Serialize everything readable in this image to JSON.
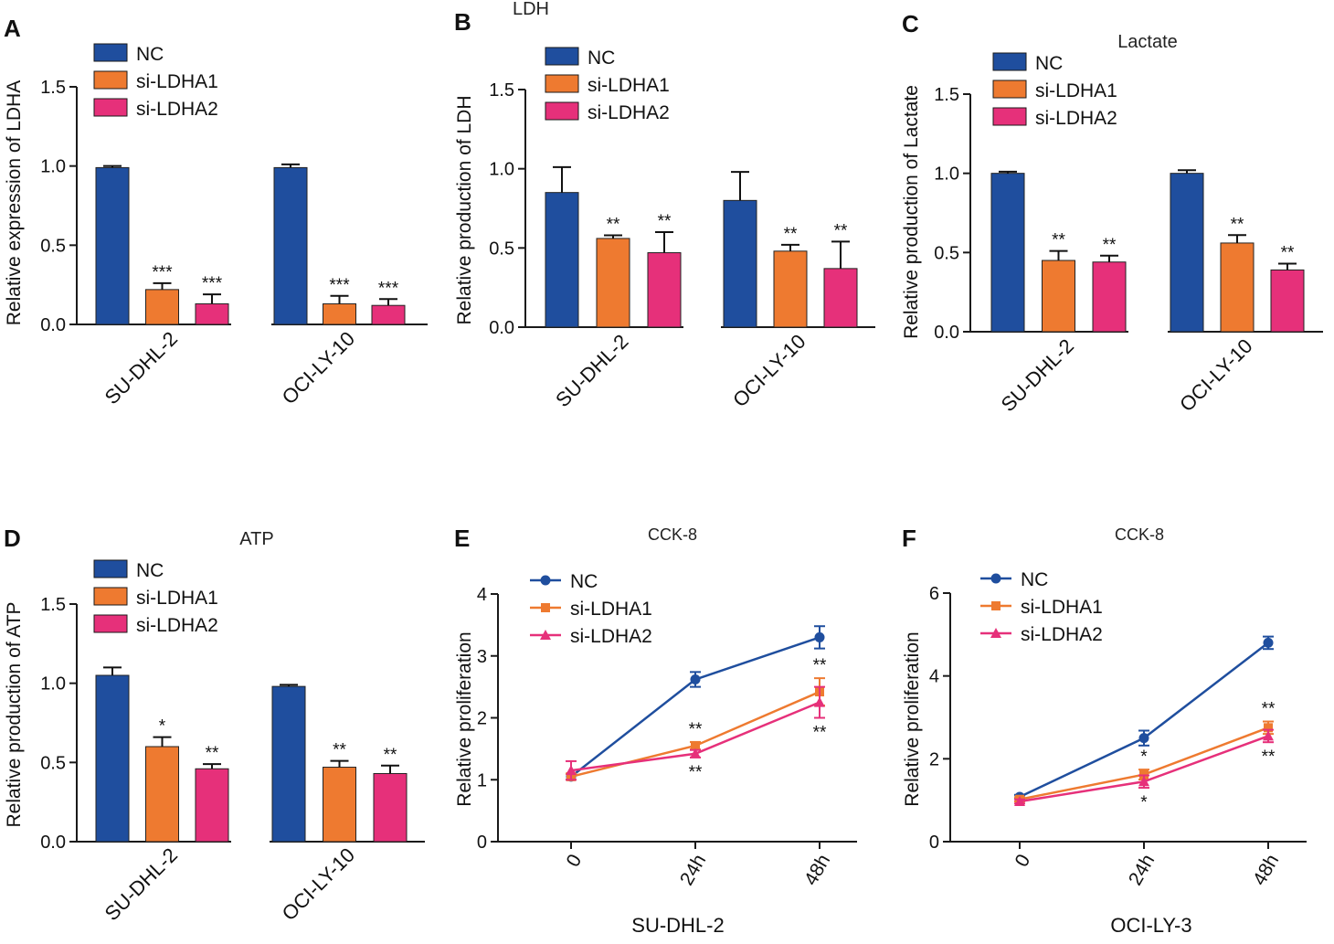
{
  "figure": {
    "colors": {
      "NC": "#1f4e9e",
      "si-LDHA1": "#ee7a30",
      "si-LDHA2": "#e6307a",
      "axis": "#1a1a1a"
    },
    "panels": [
      {
        "id": "A",
        "label": "A"
      },
      {
        "id": "B",
        "label": "B"
      },
      {
        "id": "C",
        "label": "C"
      },
      {
        "id": "D",
        "label": "D"
      },
      {
        "id": "E",
        "label": "E"
      },
      {
        "id": "F",
        "label": "F"
      }
    ]
  },
  "chart_data": [
    {
      "panel": "A",
      "type": "bar",
      "title": "",
      "ylabel": "Relative expression of LDHA",
      "xlabel": "",
      "ylim": [
        0,
        1.5
      ],
      "yticks": [
        "0.0",
        "0.5",
        "1.0",
        "1.5"
      ],
      "categories": [
        "SU-DHL-2",
        "OCI-LY-10"
      ],
      "series": [
        {
          "name": "NC",
          "values": [
            0.99,
            0.99
          ],
          "errors": [
            0.01,
            0.02
          ],
          "sig": [
            "",
            ""
          ]
        },
        {
          "name": "si-LDHA1",
          "values": [
            0.22,
            0.13
          ],
          "errors": [
            0.04,
            0.05
          ],
          "sig": [
            "***",
            "***"
          ]
        },
        {
          "name": "si-LDHA2",
          "values": [
            0.13,
            0.12
          ],
          "errors": [
            0.06,
            0.04
          ],
          "sig": [
            "***",
            "***"
          ]
        }
      ]
    },
    {
      "panel": "B",
      "type": "bar",
      "title": "LDH",
      "ylabel": "Relative production of LDH",
      "xlabel": "",
      "ylim": [
        0,
        1.5
      ],
      "yticks": [
        "0.0",
        "0.5",
        "1.0",
        "1.5"
      ],
      "categories": [
        "SU-DHL-2",
        "OCI-LY-10"
      ],
      "series": [
        {
          "name": "NC",
          "values": [
            0.85,
            0.8
          ],
          "errors": [
            0.16,
            0.18
          ],
          "sig": [
            "",
            ""
          ]
        },
        {
          "name": "si-LDHA1",
          "values": [
            0.56,
            0.48
          ],
          "errors": [
            0.02,
            0.04
          ],
          "sig": [
            "**",
            "**"
          ]
        },
        {
          "name": "si-LDHA2",
          "values": [
            0.47,
            0.37
          ],
          "errors": [
            0.13,
            0.17
          ],
          "sig": [
            "**",
            "**"
          ]
        }
      ]
    },
    {
      "panel": "C",
      "type": "bar",
      "title": "Lactate",
      "ylabel": "Relative production of Lactate",
      "xlabel": "",
      "ylim": [
        0,
        1.5
      ],
      "yticks": [
        "0.0",
        "0.5",
        "1.0",
        "1.5"
      ],
      "categories": [
        "SU-DHL-2",
        "OCI-LY-10"
      ],
      "series": [
        {
          "name": "NC",
          "values": [
            1.0,
            1.0
          ],
          "errors": [
            0.01,
            0.02
          ],
          "sig": [
            "",
            ""
          ]
        },
        {
          "name": "si-LDHA1",
          "values": [
            0.45,
            0.56
          ],
          "errors": [
            0.06,
            0.05
          ],
          "sig": [
            "**",
            "**"
          ]
        },
        {
          "name": "si-LDHA2",
          "values": [
            0.44,
            0.39
          ],
          "errors": [
            0.04,
            0.04
          ],
          "sig": [
            "**",
            "**"
          ]
        }
      ]
    },
    {
      "panel": "D",
      "type": "bar",
      "title": "ATP",
      "ylabel": "Relative  production of ATP",
      "xlabel": "",
      "ylim": [
        0,
        1.5
      ],
      "yticks": [
        "0.0",
        "0.5",
        "1.0",
        "1.5"
      ],
      "categories": [
        "SU-DHL-2",
        "OCI-LY-10"
      ],
      "series": [
        {
          "name": "NC",
          "values": [
            1.05,
            0.98
          ],
          "errors": [
            0.05,
            0.01
          ],
          "sig": [
            "",
            ""
          ]
        },
        {
          "name": "si-LDHA1",
          "values": [
            0.6,
            0.47
          ],
          "errors": [
            0.06,
            0.04
          ],
          "sig": [
            "*",
            "**"
          ]
        },
        {
          "name": "si-LDHA2",
          "values": [
            0.46,
            0.43
          ],
          "errors": [
            0.03,
            0.05
          ],
          "sig": [
            "**",
            "**"
          ]
        }
      ]
    },
    {
      "panel": "E",
      "type": "line",
      "title": "CCK-8",
      "ylabel": "Relative proliferation",
      "xlabel": "SU-DHL-2",
      "ylim": [
        0,
        4
      ],
      "yticks": [
        "0",
        "1",
        "2",
        "3",
        "4"
      ],
      "x": [
        "0",
        "24h",
        "48h"
      ],
      "series": [
        {
          "name": "NC",
          "values": [
            1.05,
            2.62,
            3.3
          ],
          "errors": [
            0.05,
            0.12,
            0.18
          ]
        },
        {
          "name": "si-LDHA1",
          "values": [
            1.05,
            1.55,
            2.42
          ],
          "errors": [
            0.05,
            0.06,
            0.22
          ]
        },
        {
          "name": "si-LDHA2",
          "values": [
            1.15,
            1.42,
            2.25
          ],
          "errors": [
            0.15,
            0.06,
            0.25
          ]
        }
      ],
      "annotations": [
        {
          "x": "24h",
          "text": "**",
          "where": "above"
        },
        {
          "x": "24h",
          "text": "**",
          "where": "below"
        },
        {
          "x": "48h",
          "text": "**",
          "where": "above"
        },
        {
          "x": "48h",
          "text": "**",
          "where": "below"
        }
      ]
    },
    {
      "panel": "F",
      "type": "line",
      "title": "CCK-8",
      "ylabel": "Relative proliferation",
      "xlabel": "OCI-LY-3",
      "ylim": [
        0,
        6
      ],
      "yticks": [
        "0",
        "2",
        "4",
        "6"
      ],
      "x": [
        "0",
        "24h",
        "48h"
      ],
      "series": [
        {
          "name": "NC",
          "values": [
            1.08,
            2.5,
            4.8
          ],
          "errors": [
            0.05,
            0.18,
            0.15
          ]
        },
        {
          "name": "si-LDHA1",
          "values": [
            1.02,
            1.62,
            2.75
          ],
          "errors": [
            0.05,
            0.12,
            0.15
          ]
        },
        {
          "name": "si-LDHA2",
          "values": [
            0.97,
            1.45,
            2.55
          ],
          "errors": [
            0.05,
            0.15,
            0.15
          ]
        }
      ],
      "annotations": [
        {
          "x": "24h",
          "text": "*",
          "where": "above"
        },
        {
          "x": "24h",
          "text": "*",
          "where": "below"
        },
        {
          "x": "48h",
          "text": "**",
          "where": "above"
        },
        {
          "x": "48h",
          "text": "**",
          "where": "below"
        }
      ]
    }
  ]
}
